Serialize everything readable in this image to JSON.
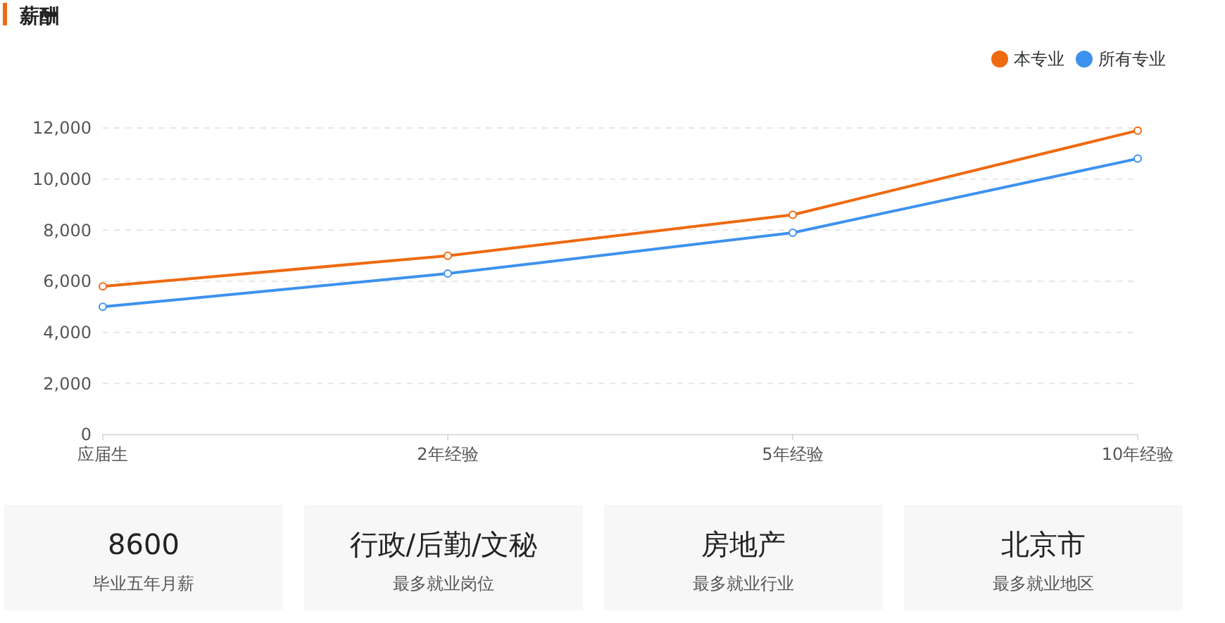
{
  "chart_data": [
    {
      "type": "line",
      "title": "薪酬",
      "categories": [
        "应届生",
        "2年经验",
        "5年经验",
        "10年经验"
      ],
      "series": [
        {
          "name": "本专业",
          "color": "#ee6a10",
          "values": [
            5800,
            7000,
            8600,
            11900
          ]
        },
        {
          "name": "所有专业",
          "color": "#3d92ee",
          "values": [
            5000,
            6300,
            7900,
            10800
          ]
        }
      ],
      "ylim": [
        0,
        12000
      ],
      "yticks": [
        {
          "value": 0,
          "label": "0"
        },
        {
          "value": 2000,
          "label": "2,000"
        },
        {
          "value": 4000,
          "label": "4,000"
        },
        {
          "value": 6000,
          "label": "6,000"
        },
        {
          "value": 8000,
          "label": "8,000"
        },
        {
          "value": 10000,
          "label": "10,000"
        },
        {
          "value": 12000,
          "label": "12,000"
        }
      ],
      "grid": "y",
      "legend": "top right",
      "marker": "circle",
      "line_style": "solid"
    },
    {
      "type": "other",
      "annotations": [
        "8600",
        "毕业五年月薪",
        "行政/后勤/文秘",
        "最多就业岗位",
        "房地产",
        "最多就业行业",
        "北京市",
        "最多就业地区"
      ]
    }
  ]
}
